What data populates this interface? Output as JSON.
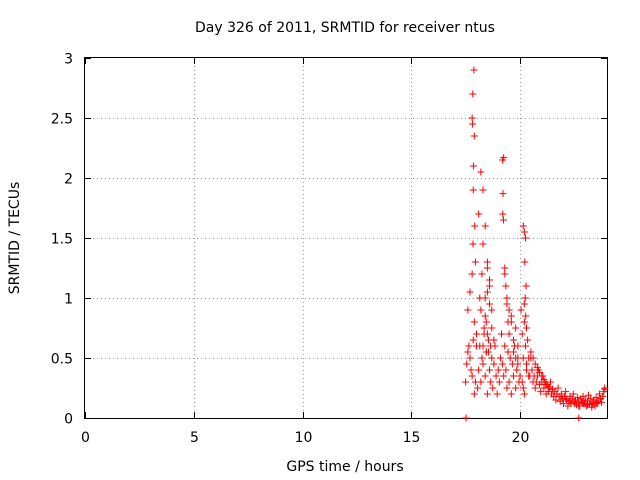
{
  "chart_data": {
    "type": "scatter",
    "title": "Day 326 of 2011, SRMTID for receiver ntus",
    "xlabel": "GPS time / hours",
    "ylabel": "SRMTID / TECUs",
    "xlim": [
      0,
      24
    ],
    "ylim": [
      0,
      3
    ],
    "xticks": [
      0,
      5,
      10,
      15,
      20
    ],
    "xtick_labels": [
      "0",
      "5",
      "10",
      "15",
      "20"
    ],
    "yticks": [
      0,
      0.5,
      1,
      1.5,
      2,
      2.5,
      3
    ],
    "ytick_labels": [
      "0",
      "0.5",
      "1",
      "1.5",
      "2",
      "2.5",
      "3"
    ],
    "grid": true,
    "marker": "+",
    "color": "#ff0000",
    "series": [
      {
        "name": "SRMTID",
        "x": [
          17.5,
          17.55,
          17.6,
          17.65,
          17.7,
          17.75,
          17.8,
          17.85,
          17.9,
          17.95,
          17.6,
          17.7,
          17.8,
          17.9,
          18.0,
          17.85,
          17.82,
          17.88,
          17.83,
          17.9,
          17.86,
          17.92,
          17.84,
          17.8,
          17.95,
          18.0,
          18.05,
          18.1,
          18.15,
          18.2,
          18.25,
          18.3,
          18.35,
          18.4,
          18.45,
          18.5,
          18.55,
          18.6,
          18.65,
          18.7,
          18.75,
          18.8,
          18.85,
          18.9,
          18.95,
          19.0,
          18.1,
          18.2,
          18.3,
          18.4,
          18.5,
          18.6,
          18.2,
          18.3,
          18.15,
          18.25,
          18.4,
          18.5,
          18.6,
          18.7,
          18.8,
          18.45,
          18.55,
          18.65,
          18.5,
          18.6,
          18.7,
          18.4,
          18.5,
          18.3,
          18.35,
          18.45,
          19.05,
          19.1,
          19.15,
          19.2,
          19.25,
          19.3,
          19.35,
          19.4,
          19.45,
          19.5,
          19.55,
          19.6,
          19.65,
          19.7,
          19.75,
          19.8,
          19.85,
          19.9,
          19.95,
          20.0,
          19.2,
          19.25,
          19.22,
          19.24,
          19.21,
          19.3,
          19.35,
          19.4,
          19.45,
          19.5,
          19.6,
          19.7,
          19.8,
          19.9,
          19.3,
          19.4,
          19.5,
          19.6,
          19.7,
          19.8,
          19.9,
          20.05,
          20.1,
          20.15,
          20.2,
          20.25,
          20.3,
          20.35,
          20.4,
          20.45,
          20.5,
          20.15,
          20.2,
          20.25,
          20.22,
          20.28,
          20.24,
          20.2,
          20.26,
          20.3,
          20.1,
          20.15,
          20.2,
          20.3,
          20.4,
          20.5,
          20.55,
          20.6,
          20.65,
          20.7,
          20.75,
          20.8,
          20.85,
          20.9,
          20.95,
          21.0,
          21.05,
          21.1,
          21.15,
          21.2,
          21.25,
          21.3,
          21.35,
          21.4,
          21.45,
          21.5,
          21.55,
          21.6,
          21.65,
          21.7,
          21.75,
          21.8,
          21.85,
          21.9,
          21.95,
          22.0,
          22.05,
          22.1,
          22.15,
          22.2,
          22.25,
          22.3,
          22.35,
          22.4,
          22.45,
          22.5,
          22.55,
          22.6,
          22.65,
          22.7,
          22.75,
          22.8,
          22.85,
          22.9,
          22.95,
          23.0,
          23.05,
          23.1,
          23.15,
          23.2,
          23.25,
          23.3,
          23.35,
          23.4,
          23.45,
          23.5,
          23.55,
          23.6,
          23.65,
          23.7,
          23.75,
          23.8,
          23.85,
          23.9,
          20.6,
          20.7,
          20.8,
          20.9,
          21.0,
          21.1,
          21.2,
          21.3,
          21.5,
          21.7,
          21.9,
          22.1,
          22.3,
          22.5,
          22.7,
          22.9,
          23.1,
          23.3,
          23.5,
          23.7,
          23.9,
          17.52,
          22.7
        ],
        "y": [
          0.3,
          0.45,
          0.55,
          0.6,
          0.5,
          0.4,
          0.35,
          0.65,
          0.2,
          0.3,
          0.9,
          1.05,
          1.2,
          0.8,
          0.6,
          1.9,
          2.45,
          2.9,
          2.7,
          2.35,
          2.1,
          1.6,
          1.45,
          2.5,
          1.3,
          0.7,
          0.25,
          0.4,
          0.6,
          0.3,
          0.5,
          0.45,
          0.7,
          0.35,
          0.55,
          0.2,
          0.65,
          0.4,
          0.3,
          0.5,
          0.25,
          0.45,
          0.6,
          0.35,
          0.2,
          0.4,
          1.7,
          2.05,
          1.9,
          1.6,
          1.3,
          1.15,
          0.9,
          1.45,
          1.0,
          1.2,
          0.85,
          1.05,
          0.95,
          0.75,
          0.65,
          0.8,
          0.55,
          0.6,
          1.25,
          1.1,
          0.9,
          1.0,
          0.7,
          0.6,
          0.75,
          0.55,
          0.3,
          0.5,
          0.7,
          0.45,
          0.35,
          0.6,
          0.4,
          0.25,
          0.55,
          0.3,
          0.5,
          0.2,
          0.45,
          0.35,
          0.6,
          0.25,
          0.4,
          0.5,
          0.3,
          0.35,
          2.15,
          2.17,
          1.87,
          1.65,
          1.7,
          1.25,
          1.1,
          0.95,
          0.8,
          0.7,
          0.85,
          0.65,
          0.75,
          0.6,
          1.2,
          1.0,
          0.9,
          0.8,
          0.55,
          0.5,
          0.45,
          0.9,
          0.7,
          0.5,
          0.8,
          0.6,
          0.4,
          0.65,
          0.5,
          0.35,
          0.55,
          1.6,
          1.55,
          1.5,
          1.3,
          1.1,
          1.0,
          0.95,
          0.85,
          0.75,
          0.3,
          0.25,
          0.2,
          0.45,
          0.35,
          0.5,
          0.4,
          0.3,
          0.35,
          0.25,
          0.3,
          0.35,
          0.4,
          0.28,
          0.22,
          0.3,
          0.35,
          0.25,
          0.3,
          0.2,
          0.28,
          0.22,
          0.25,
          0.3,
          0.2,
          0.24,
          0.18,
          0.22,
          0.15,
          0.2,
          0.25,
          0.18,
          0.14,
          0.2,
          0.16,
          0.12,
          0.18,
          0.22,
          0.15,
          0.1,
          0.14,
          0.18,
          0.12,
          0.16,
          0.2,
          0.13,
          0.15,
          0.11,
          0.17,
          0.14,
          0.1,
          0.16,
          0.13,
          0.18,
          0.12,
          0.15,
          0.1,
          0.14,
          0.19,
          0.12,
          0.16,
          0.11,
          0.13,
          0.15,
          0.1,
          0.17,
          0.12,
          0.14,
          0.2,
          0.16,
          0.13,
          0.18,
          0.22,
          0.25,
          0.5,
          0.45,
          0.42,
          0.38,
          0.35,
          0.32,
          0.28,
          0.26,
          0.24,
          0.2,
          0.18,
          0.16,
          0.14,
          0.12,
          0.1,
          0.12,
          0.11,
          0.09,
          0.13,
          0.16,
          0.24,
          0.0,
          0.0
        ]
      }
    ]
  }
}
